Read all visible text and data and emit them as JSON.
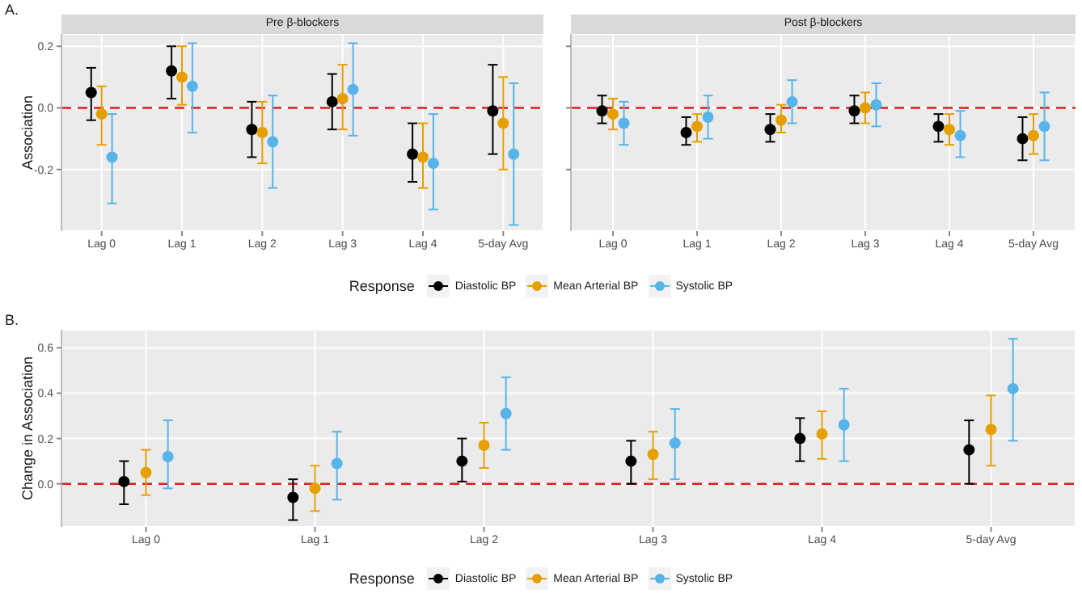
{
  "chart_data": [
    {
      "type": "scatter",
      "title": "Pre β-blockers",
      "ylabel": "Association",
      "annotations": [
        "A."
      ],
      "legend": "bottom",
      "legend_title": "Response",
      "marker": "circle",
      "grid": true,
      "categories": [
        "Lag 0",
        "Lag 1",
        "Lag 2",
        "Lag 3",
        "Lag 4",
        "5-day Avg"
      ],
      "ylim": [
        -0.4,
        0.24
      ],
      "yticks": [
        {
          "value": -0.2,
          "label": "-0.2"
        },
        {
          "value": 0,
          "label": "0.0"
        },
        {
          "value": 0.2,
          "label": "0.2"
        }
      ],
      "ref_lines": [
        {
          "axis": "y",
          "value": 0,
          "color": "#e41a1c",
          "line_style": "dashed"
        }
      ],
      "series": [
        {
          "name": "Diastolic BP",
          "color": "#000000",
          "values": [
            0.05,
            0.12,
            -0.07,
            0.02,
            -0.15,
            -0.01
          ],
          "errors": [
            [
              -0.04,
              0.13
            ],
            [
              0.03,
              0.2
            ],
            [
              -0.16,
              0.02
            ],
            [
              -0.07,
              0.11
            ],
            [
              -0.24,
              -0.05
            ],
            [
              -0.15,
              0.14
            ]
          ]
        },
        {
          "name": "Mean Arterial BP",
          "color": "#e69f00",
          "values": [
            -0.02,
            0.1,
            -0.08,
            0.03,
            -0.16,
            -0.05
          ],
          "errors": [
            [
              -0.12,
              0.07
            ],
            [
              0.01,
              0.2
            ],
            [
              -0.18,
              0.02
            ],
            [
              -0.07,
              0.14
            ],
            [
              -0.26,
              -0.05
            ],
            [
              -0.2,
              0.1
            ]
          ]
        },
        {
          "name": "Systolic BP",
          "color": "#56b4e9",
          "values": [
            -0.16,
            0.07,
            -0.11,
            0.06,
            -0.18,
            -0.15
          ],
          "errors": [
            [
              -0.31,
              -0.02
            ],
            [
              -0.08,
              0.21
            ],
            [
              -0.26,
              0.04
            ],
            [
              -0.09,
              0.21
            ],
            [
              -0.33,
              -0.02
            ],
            [
              -0.38,
              0.08
            ]
          ]
        }
      ]
    },
    {
      "type": "scatter",
      "title": "Post β-blockers",
      "marker": "circle",
      "grid": true,
      "tick_labels": "x",
      "categories": [
        "Lag 0",
        "Lag 1",
        "Lag 2",
        "Lag 3",
        "Lag 4",
        "5-day Avg"
      ],
      "ylim": [
        -0.4,
        0.24
      ],
      "yticks": [
        {
          "value": -0.2,
          "label": null
        },
        {
          "value": 0,
          "label": null
        },
        {
          "value": 0.2,
          "label": null
        }
      ],
      "ref_lines": [
        {
          "axis": "y",
          "value": 0,
          "color": "#e41a1c",
          "line_style": "dashed"
        }
      ],
      "series": [
        {
          "color": "#000000",
          "values": [
            -0.01,
            -0.08,
            -0.07,
            -0.01,
            -0.06,
            -0.1
          ],
          "errors": [
            [
              -0.05,
              0.04
            ],
            [
              -0.12,
              -0.03
            ],
            [
              -0.11,
              -0.02
            ],
            [
              -0.05,
              0.04
            ],
            [
              -0.11,
              -0.02
            ],
            [
              -0.17,
              -0.03
            ]
          ]
        },
        {
          "color": "#e69f00",
          "values": [
            -0.02,
            -0.06,
            -0.04,
            0,
            -0.07,
            -0.09
          ],
          "errors": [
            [
              -0.07,
              0.03
            ],
            [
              -0.11,
              -0.02
            ],
            [
              -0.08,
              0.01
            ],
            [
              -0.05,
              0.05
            ],
            [
              -0.12,
              -0.02
            ],
            [
              -0.15,
              -0.02
            ]
          ]
        },
        {
          "color": "#56b4e9",
          "values": [
            -0.05,
            -0.03,
            0.02,
            0.01,
            -0.09,
            -0.06
          ],
          "errors": [
            [
              -0.12,
              0.02
            ],
            [
              -0.1,
              0.04
            ],
            [
              -0.05,
              0.09
            ],
            [
              -0.06,
              0.08
            ],
            [
              -0.16,
              -0.01
            ],
            [
              -0.17,
              0.05
            ]
          ]
        }
      ]
    },
    {
      "type": "scatter",
      "ylabel": "Change in Association",
      "annotations": [
        "B."
      ],
      "legend": "bottom",
      "legend_title": "Response",
      "marker": "circle",
      "grid": true,
      "categories": [
        "Lag 0",
        "Lag 1",
        "Lag 2",
        "Lag 3",
        "Lag 4",
        "5-day Avg"
      ],
      "ylim": [
        -0.19,
        0.68
      ],
      "yticks": [
        {
          "value": 0,
          "label": "0.0"
        },
        {
          "value": 0.2,
          "label": "0.2"
        },
        {
          "value": 0.4,
          "label": "0.4"
        },
        {
          "value": 0.6,
          "label": "0.6"
        }
      ],
      "ref_lines": [
        {
          "axis": "y",
          "value": 0,
          "color": "#e41a1c",
          "line_style": "dashed"
        }
      ],
      "series": [
        {
          "name": "Diastolic BP",
          "color": "#000000",
          "values": [
            0.01,
            -0.06,
            0.1,
            0.1,
            0.2,
            0.15
          ],
          "errors": [
            [
              -0.09,
              0.1
            ],
            [
              -0.16,
              0.02
            ],
            [
              0.01,
              0.2
            ],
            [
              0,
              0.19
            ],
            [
              0.1,
              0.29
            ],
            [
              0,
              0.28
            ]
          ]
        },
        {
          "name": "Mean Arterial BP",
          "color": "#e69f00",
          "values": [
            0.05,
            -0.02,
            0.17,
            0.13,
            0.22,
            0.24
          ],
          "errors": [
            [
              -0.05,
              0.15
            ],
            [
              -0.12,
              0.08
            ],
            [
              0.07,
              0.27
            ],
            [
              0.02,
              0.23
            ],
            [
              0.11,
              0.32
            ],
            [
              0.08,
              0.39
            ]
          ]
        },
        {
          "name": "Systolic BP",
          "color": "#56b4e9",
          "values": [
            0.12,
            0.09,
            0.31,
            0.18,
            0.26,
            0.42
          ],
          "errors": [
            [
              -0.02,
              0.28
            ],
            [
              -0.07,
              0.23
            ],
            [
              0.15,
              0.47
            ],
            [
              0.02,
              0.33
            ],
            [
              0.1,
              0.42
            ],
            [
              0.19,
              0.64
            ]
          ]
        }
      ]
    }
  ]
}
